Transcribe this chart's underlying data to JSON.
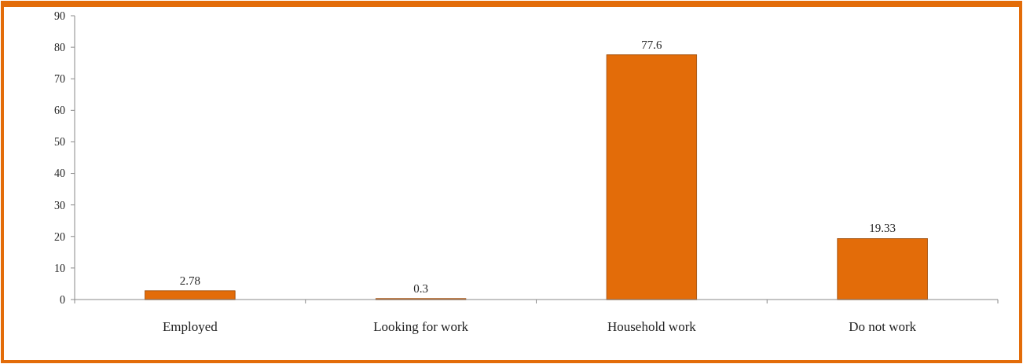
{
  "chart_data": {
    "type": "bar",
    "categories": [
      "Employed",
      "Looking for work",
      "Household work",
      "Do not work"
    ],
    "values": [
      2.78,
      0.3,
      77.6,
      19.33
    ],
    "color": "#e36c09",
    "ylim": [
      0,
      90
    ],
    "yticks": [
      0,
      10,
      20,
      30,
      40,
      50,
      60,
      70,
      80,
      90
    ],
    "data_labels": true
  }
}
